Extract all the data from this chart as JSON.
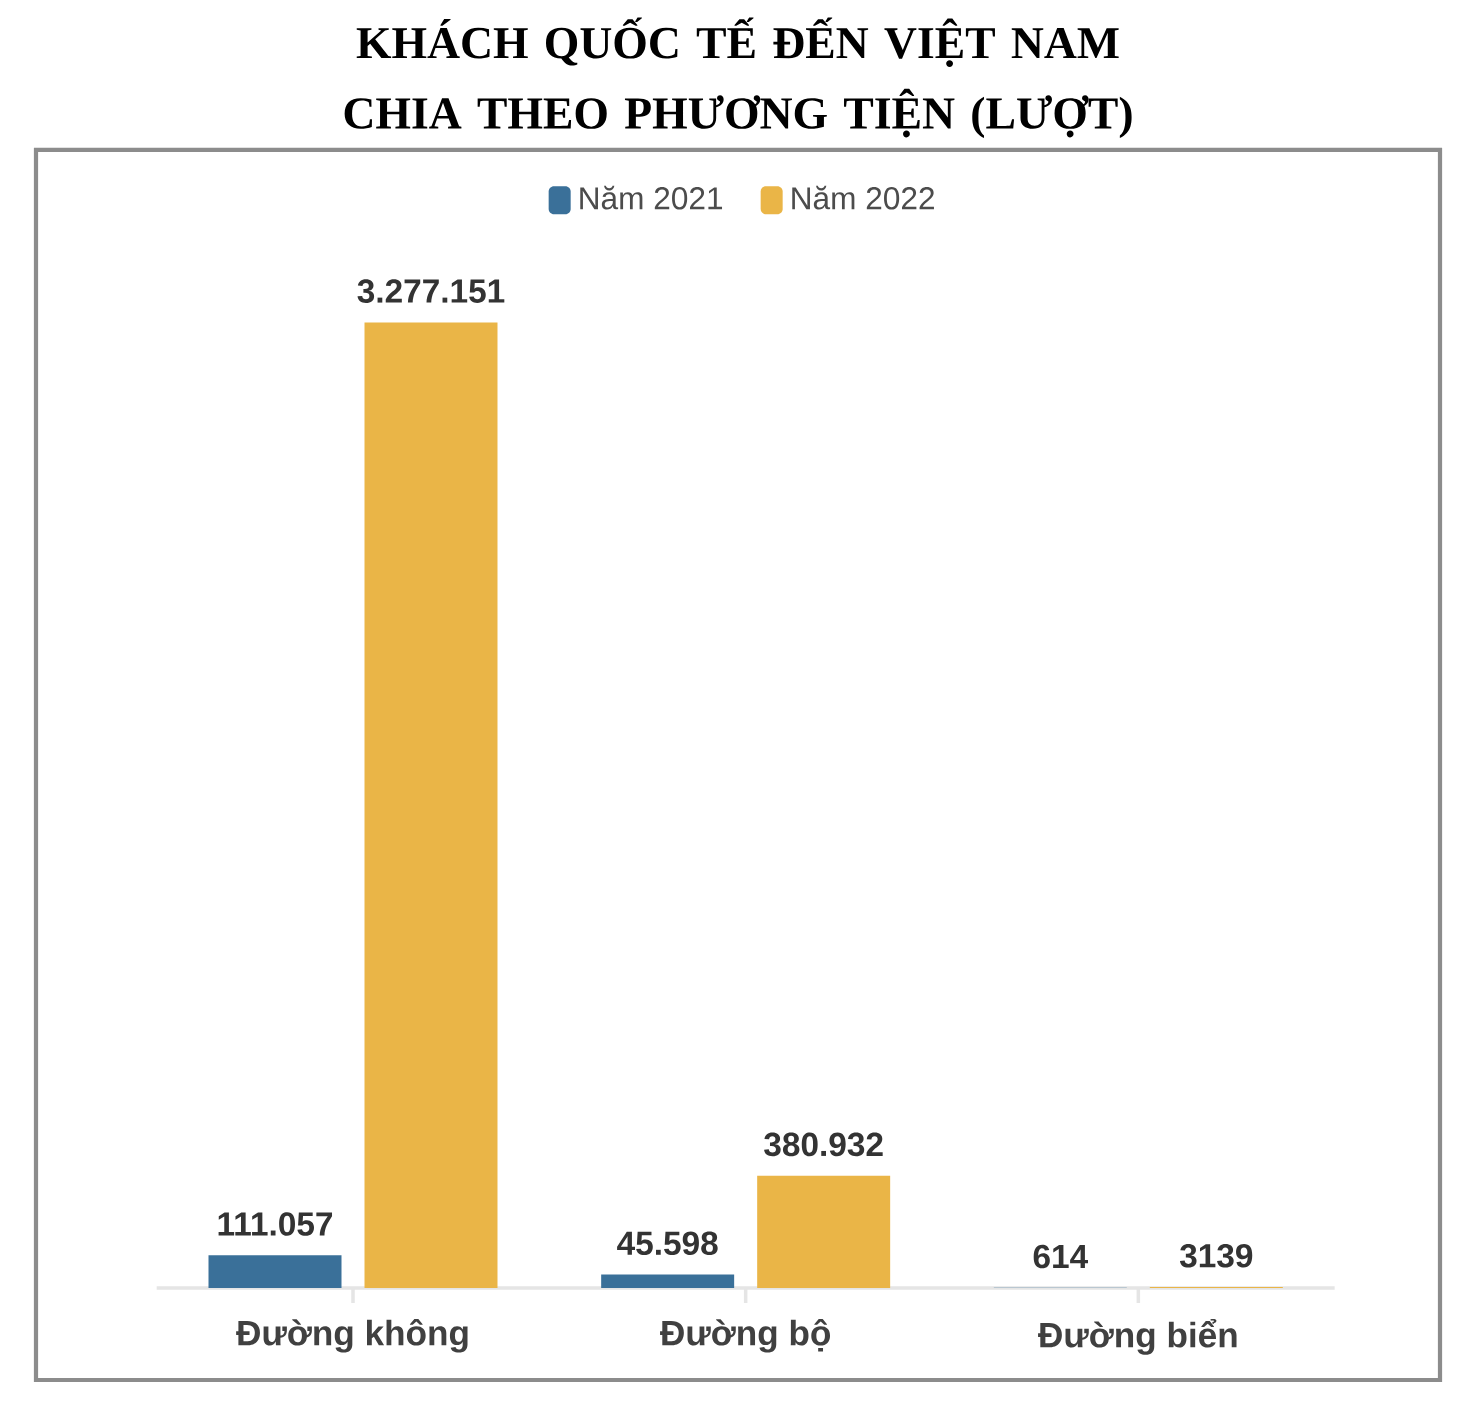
{
  "chart_data": {
    "type": "bar",
    "title": "KHÁCH QUỐC TẾ ĐẾN VIỆT NAM CHIA THEO PHƯƠNG TIỆN (LƯỢT)",
    "categories": [
      "Đường không",
      "Đường bộ",
      "Đường biển"
    ],
    "legend": "top",
    "series": [
      {
        "name": "Năm 2021",
        "color": "#3a7099",
        "values": [
          111057,
          45598,
          614
        ],
        "value_labels": [
          "111.057",
          "45.598",
          "614"
        ]
      },
      {
        "name": "Năm 2022",
        "color": "#eab547",
        "values": [
          3277151,
          380932,
          3139
        ],
        "value_labels": [
          "3.277.151",
          "380.932",
          "3139"
        ]
      }
    ]
  }
}
